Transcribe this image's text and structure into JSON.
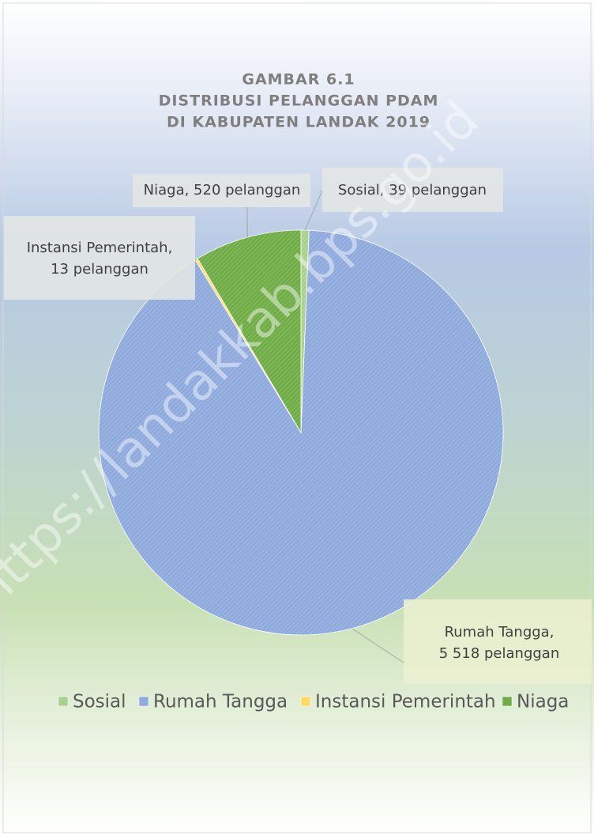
{
  "chart_data": {
    "type": "pie",
    "title": [
      "GAMBAR 6.1",
      "DISTRIBUSI PELANGGAN PDAM",
      "DI KABUPATEN LANDAK 2019"
    ],
    "categories": [
      "Sosial",
      "Rumah Tangga",
      "Instansi Pemerintah",
      "Niaga"
    ],
    "values": [
      39,
      5518,
      13,
      520
    ],
    "value_labels": [
      [
        "Sosial,  39 pelanggan"
      ],
      [
        "Rumah Tangga,",
        "5 518 pelanggan"
      ],
      [
        "Instansi Pemerintah,",
        "13 pelanggan"
      ],
      [
        "Niaga,  520 pelanggan"
      ]
    ],
    "colors": [
      "#a9d18e",
      "#8faadc",
      "#ffd966",
      "#70ad47"
    ],
    "legend": "bottom",
    "watermark": "https://landakkab.bps.go.id"
  }
}
